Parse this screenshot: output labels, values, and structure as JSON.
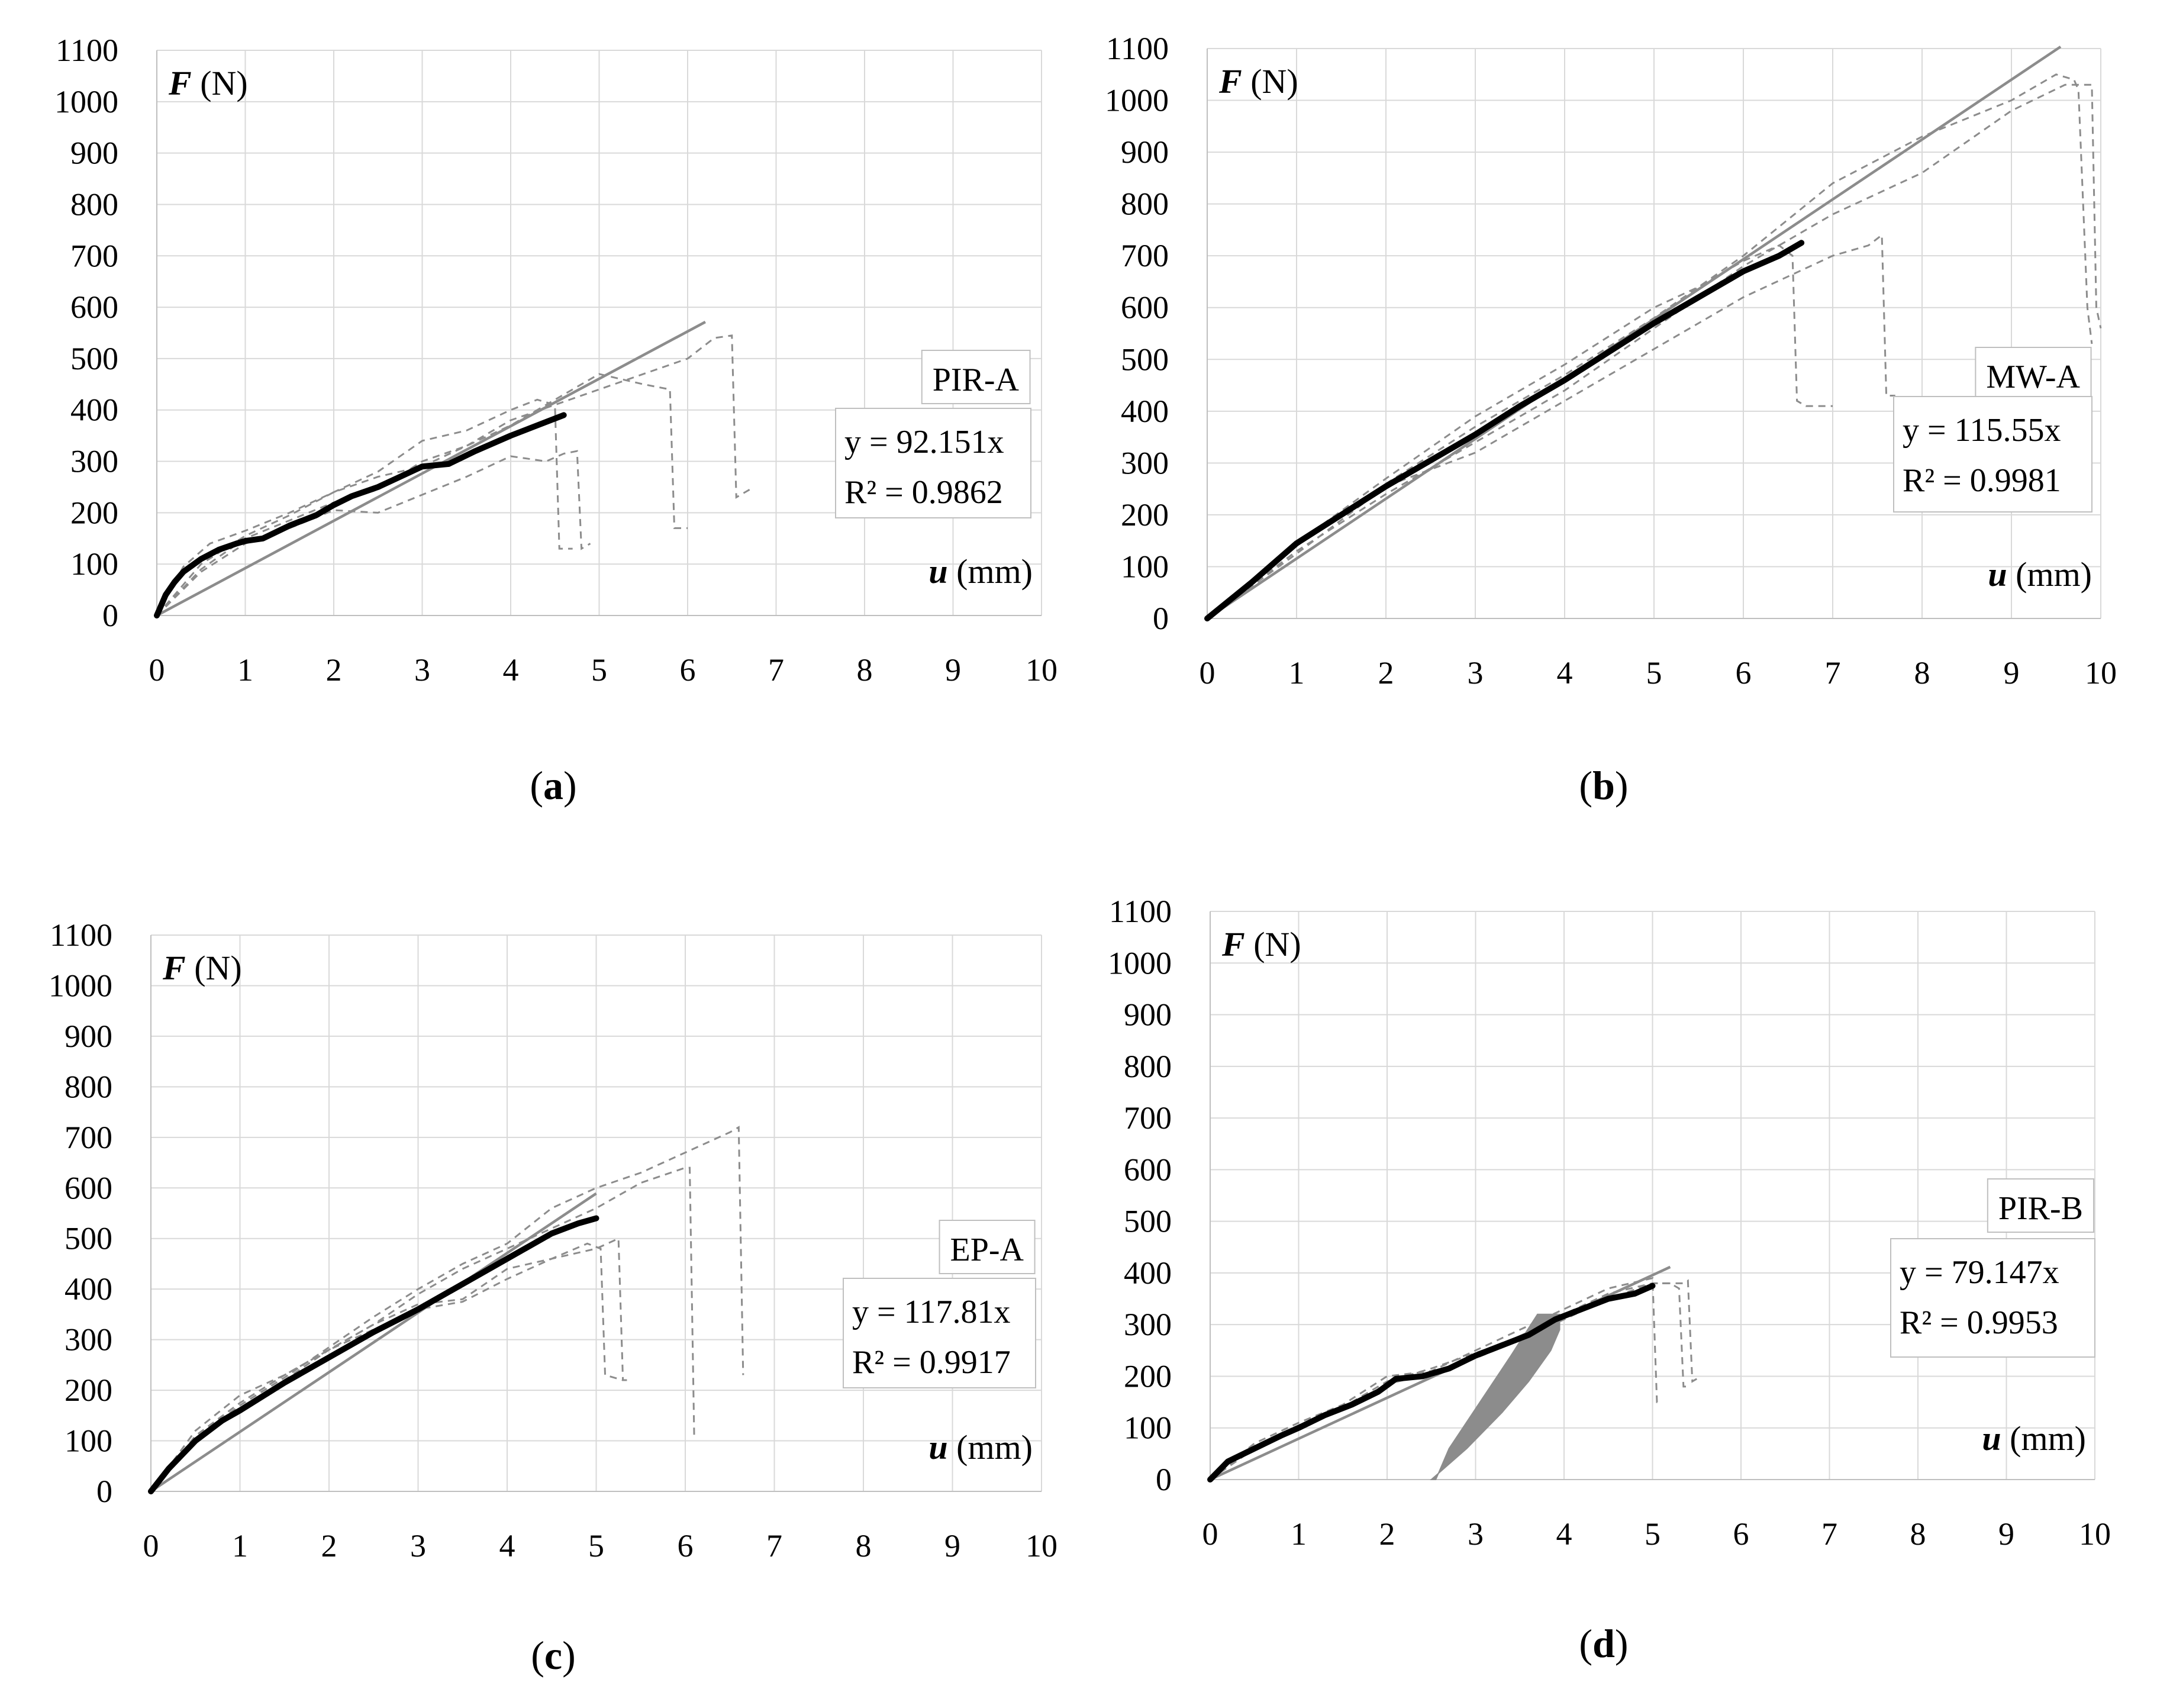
{
  "axis": {
    "x_label_symbol": "u",
    "x_label_unit": "(mm)",
    "y_label_symbol": "F",
    "y_label_unit": "(N)"
  },
  "colors": {
    "average": "#000000",
    "tests": "#8c8c8c",
    "fit": "#8c8c8c",
    "grid": "#d9d9d9"
  },
  "chart_data": [
    {
      "id": "a",
      "type": "line",
      "caption": "a",
      "label": "PIR-A",
      "equation": "y = 92.151x",
      "r2": "R² = 0.9862",
      "xlim": [
        0,
        10
      ],
      "ylim": [
        0,
        1100
      ],
      "xticks": [
        0,
        1,
        2,
        3,
        4,
        5,
        6,
        7,
        8,
        9,
        10
      ],
      "yticks": [
        0,
        100,
        200,
        300,
        400,
        500,
        600,
        700,
        800,
        900,
        1000,
        1100
      ],
      "fit": {
        "slope": 92.151,
        "x": [
          0,
          6.2
        ]
      },
      "average": {
        "x": [
          0,
          0.1,
          0.2,
          0.3,
          0.5,
          0.7,
          0.9,
          1.0,
          1.2,
          1.5,
          1.8,
          2.0,
          2.2,
          2.5,
          3.0,
          3.3,
          3.6,
          4.0,
          4.3,
          4.6
        ],
        "y": [
          0,
          40,
          65,
          85,
          110,
          128,
          140,
          145,
          150,
          175,
          195,
          215,
          232,
          250,
          290,
          295,
          320,
          350,
          370,
          390
        ]
      },
      "tests": [
        {
          "x": [
            0,
            0.3,
            0.6,
            1.0,
            1.5,
            2.0,
            2.5,
            3.0,
            3.5,
            4.0,
            4.3,
            4.5,
            4.55,
            4.7
          ],
          "y": [
            0,
            95,
            140,
            165,
            200,
            240,
            280,
            340,
            360,
            400,
            420,
            410,
            130,
            130
          ]
        },
        {
          "x": [
            0,
            0.5,
            1.0,
            1.5,
            2.0,
            2.5,
            3.0,
            3.5,
            4.0,
            4.4,
            4.6,
            4.75,
            4.8,
            4.9
          ],
          "y": [
            0,
            85,
            140,
            170,
            205,
            200,
            235,
            270,
            310,
            300,
            315,
            320,
            130,
            140
          ]
        },
        {
          "x": [
            0,
            0.5,
            1.0,
            1.5,
            2.0,
            2.5,
            3.0,
            3.5,
            4.0,
            4.5,
            5.0,
            5.5,
            5.8,
            5.85,
            6.0
          ],
          "y": [
            0,
            90,
            150,
            185,
            220,
            245,
            300,
            330,
            370,
            420,
            470,
            450,
            440,
            170,
            170
          ]
        },
        {
          "x": [
            0,
            0.5,
            1.0,
            1.5,
            2.0,
            2.5,
            3.0,
            3.5,
            4.0,
            4.5,
            5.0,
            5.5,
            6.0,
            6.3,
            6.5,
            6.55,
            6.7
          ],
          "y": [
            0,
            100,
            155,
            195,
            240,
            270,
            290,
            330,
            380,
            410,
            440,
            470,
            500,
            540,
            545,
            230,
            245
          ]
        }
      ]
    },
    {
      "id": "b",
      "type": "line",
      "caption": "b",
      "label": "MW-A",
      "equation": "y = 115.55x",
      "r2": "R² = 0.9981",
      "xlim": [
        0,
        10
      ],
      "ylim": [
        0,
        1100
      ],
      "xticks": [
        0,
        1,
        2,
        3,
        4,
        5,
        6,
        7,
        8,
        9,
        10
      ],
      "yticks": [
        0,
        100,
        200,
        300,
        400,
        500,
        600,
        700,
        800,
        900,
        1000,
        1100
      ],
      "fit": {
        "slope": 115.55,
        "x": [
          0,
          9.55
        ]
      },
      "average": {
        "x": [
          0,
          0.5,
          1.0,
          1.5,
          2.0,
          2.5,
          3.0,
          3.5,
          4.0,
          4.5,
          5.0,
          5.5,
          6.0,
          6.4,
          6.65
        ],
        "y": [
          0,
          70,
          145,
          200,
          255,
          305,
          355,
          410,
          460,
          515,
          570,
          620,
          670,
          700,
          725
        ]
      },
      "tests": [
        {
          "x": [
            0,
            1,
            2,
            3,
            4,
            5,
            5.5,
            6.0,
            6.4,
            6.55,
            6.6,
            6.7,
            6.9,
            7.0
          ],
          "y": [
            0,
            145,
            270,
            390,
            490,
            600,
            640,
            690,
            720,
            700,
            420,
            410,
            410,
            410
          ]
        },
        {
          "x": [
            0,
            1,
            2,
            3,
            4,
            5,
            6,
            6.5,
            7.0,
            7.4,
            7.55,
            7.6,
            7.7
          ],
          "y": [
            0,
            125,
            255,
            320,
            420,
            520,
            620,
            660,
            700,
            720,
            740,
            430,
            430
          ]
        },
        {
          "x": [
            0,
            1,
            2,
            3,
            4,
            5,
            6,
            7,
            8,
            9,
            9.5,
            9.7,
            9.75,
            9.85,
            9.9
          ],
          "y": [
            0,
            140,
            260,
            370,
            470,
            580,
            700,
            840,
            930,
            1000,
            1050,
            1040,
            1020,
            600,
            530
          ]
        },
        {
          "x": [
            0,
            1,
            2,
            3,
            4,
            5,
            6,
            7,
            8,
            9,
            9.6,
            9.9,
            9.95,
            10.0
          ],
          "y": [
            0,
            130,
            240,
            340,
            440,
            560,
            680,
            780,
            860,
            980,
            1030,
            1030,
            600,
            560
          ]
        }
      ]
    },
    {
      "id": "c",
      "type": "line",
      "caption": "c",
      "label": "EP-A",
      "equation": "y = 117.81x",
      "r2": "R² = 0.9917",
      "xlim": [
        0,
        10
      ],
      "ylim": [
        0,
        1100
      ],
      "xticks": [
        0,
        1,
        2,
        3,
        4,
        5,
        6,
        7,
        8,
        9,
        10
      ],
      "yticks": [
        0,
        100,
        200,
        300,
        400,
        500,
        600,
        700,
        800,
        900,
        1000,
        1100
      ],
      "fit": {
        "slope": 117.81,
        "x": [
          0,
          5.0
        ]
      },
      "average": {
        "x": [
          0,
          0.2,
          0.5,
          0.8,
          1.0,
          1.5,
          2.0,
          2.5,
          3.0,
          3.5,
          4.0,
          4.5,
          4.8,
          5.0
        ],
        "y": [
          0,
          45,
          100,
          140,
          160,
          215,
          265,
          315,
          360,
          410,
          460,
          510,
          530,
          540
        ]
      },
      "tests": [
        {
          "x": [
            0,
            0.5,
            1.0,
            1.5,
            2.0,
            2.5,
            3.0,
            3.5,
            4.0,
            4.5,
            4.9,
            5.05,
            5.1,
            5.3
          ],
          "y": [
            0,
            120,
            190,
            230,
            280,
            320,
            360,
            375,
            420,
            460,
            490,
            480,
            230,
            220
          ]
        },
        {
          "x": [
            0,
            0.5,
            1.0,
            1.5,
            2.0,
            2.5,
            3.0,
            3.5,
            4.0,
            4.5,
            5.0,
            5.25,
            5.3,
            5.35
          ],
          "y": [
            0,
            110,
            175,
            230,
            280,
            330,
            370,
            380,
            440,
            460,
            480,
            500,
            220,
            220
          ]
        },
        {
          "x": [
            0,
            0.5,
            1.0,
            1.5,
            2.0,
            2.5,
            3.0,
            3.5,
            4.0,
            4.5,
            5.0,
            5.5,
            6.0,
            6.05,
            6.1
          ],
          "y": [
            0,
            100,
            165,
            220,
            280,
            330,
            390,
            440,
            480,
            520,
            560,
            610,
            640,
            640,
            110
          ]
        },
        {
          "x": [
            0,
            0.5,
            1.0,
            1.5,
            2.0,
            2.5,
            3.0,
            3.5,
            4.0,
            4.5,
            5.0,
            5.5,
            6.0,
            6.5,
            6.6,
            6.65
          ],
          "y": [
            0,
            105,
            170,
            225,
            285,
            345,
            400,
            450,
            490,
            560,
            600,
            630,
            670,
            710,
            720,
            230
          ]
        }
      ]
    },
    {
      "id": "d",
      "type": "line",
      "caption": "d",
      "label": "PIR-B",
      "equation": "y = 79.147x",
      "r2": "R² = 0.9953",
      "xlim": [
        0,
        10
      ],
      "ylim": [
        0,
        1100
      ],
      "xticks": [
        0,
        1,
        2,
        3,
        4,
        5,
        6,
        7,
        8,
        9,
        10
      ],
      "yticks": [
        0,
        100,
        200,
        300,
        400,
        500,
        600,
        700,
        800,
        900,
        1000,
        1100
      ],
      "fit": {
        "slope": 79.147,
        "x": [
          0,
          5.2
        ]
      },
      "band": {
        "x": [
          2.5,
          2.9,
          3.3,
          3.6,
          3.85,
          3.95,
          3.95,
          3.7,
          3.4,
          3.05,
          2.7,
          2.55
        ],
        "y": [
          0,
          60,
          130,
          190,
          250,
          290,
          320,
          320,
          240,
          150,
          60,
          0
        ]
      },
      "average": {
        "x": [
          0,
          0.2,
          0.5,
          0.8,
          1.0,
          1.3,
          1.6,
          1.9,
          2.1,
          2.4,
          2.7,
          3.0,
          3.3,
          3.6,
          3.9,
          4.2,
          4.5,
          4.8,
          5.0
        ],
        "y": [
          0,
          35,
          60,
          85,
          100,
          125,
          145,
          170,
          195,
          200,
          215,
          240,
          260,
          280,
          310,
          330,
          350,
          360,
          375
        ]
      },
      "tests": [
        {
          "x": [
            0,
            0.5,
            1.0,
            1.5,
            2.0,
            2.5,
            3.0,
            3.5,
            4.0,
            4.5,
            5.0,
            5.05,
            5.1
          ],
          "y": [
            0,
            70,
            110,
            145,
            200,
            210,
            250,
            290,
            330,
            370,
            390,
            150,
            150
          ]
        },
        {
          "x": [
            0,
            0.5,
            1.0,
            1.5,
            2.0,
            2.5,
            3.0,
            3.5,
            4.0,
            4.5,
            5.0,
            5.2,
            5.3,
            5.35,
            5.4
          ],
          "y": [
            0,
            65,
            105,
            140,
            190,
            215,
            245,
            275,
            320,
            360,
            380,
            380,
            370,
            180,
            180
          ]
        },
        {
          "x": [
            0,
            0.5,
            1.0,
            1.5,
            2.0,
            2.5,
            3.0,
            3.5,
            4.0,
            4.5,
            5.0,
            5.35,
            5.4,
            5.45,
            5.5
          ],
          "y": [
            0,
            60,
            100,
            135,
            185,
            205,
            235,
            270,
            310,
            350,
            380,
            380,
            385,
            190,
            195
          ]
        }
      ]
    }
  ]
}
